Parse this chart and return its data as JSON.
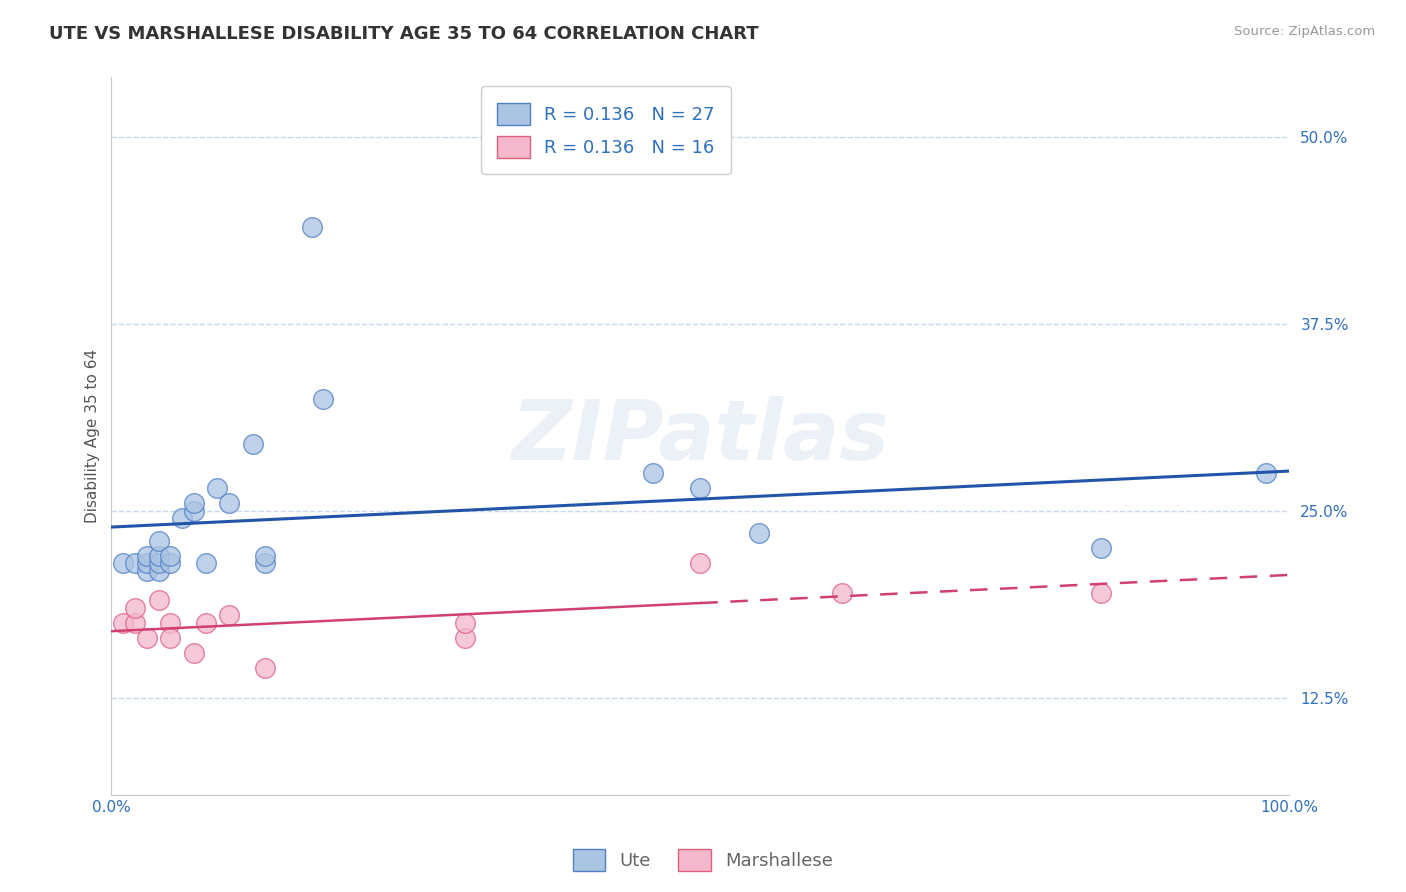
{
  "title": "UTE VS MARSHALLESE DISABILITY AGE 35 TO 64 CORRELATION CHART",
  "source": "Source: ZipAtlas.com",
  "ylabel": "Disability Age 35 to 64",
  "xlim": [
    0,
    1.0
  ],
  "ylim": [
    0.06,
    0.54
  ],
  "yticks": [
    0.125,
    0.25,
    0.375,
    0.5
  ],
  "yticklabels": [
    "12.5%",
    "25.0%",
    "37.5%",
    "50.0%"
  ],
  "ute_R": 0.136,
  "ute_N": 27,
  "marshallese_R": 0.136,
  "marshallese_N": 16,
  "ute_color": "#aac4e2",
  "ute_edge_color": "#5080c8",
  "ute_line_color": "#2255aa",
  "marshallese_color": "#f4b8cc",
  "marshallese_edge_color": "#e06080",
  "marshallese_line_color": "#d04070",
  "background_color": "#ffffff",
  "grid_color": "#c8d8ec",
  "ute_x": [
    0.01,
    0.02,
    0.03,
    0.03,
    0.03,
    0.04,
    0.04,
    0.04,
    0.04,
    0.05,
    0.05,
    0.06,
    0.07,
    0.07,
    0.08,
    0.09,
    0.1,
    0.12,
    0.13,
    0.13,
    0.17,
    0.18,
    0.46,
    0.5,
    0.55,
    0.84,
    0.98
  ],
  "ute_y": [
    0.215,
    0.215,
    0.21,
    0.215,
    0.22,
    0.21,
    0.215,
    0.22,
    0.23,
    0.215,
    0.22,
    0.245,
    0.25,
    0.255,
    0.215,
    0.265,
    0.255,
    0.295,
    0.215,
    0.22,
    0.44,
    0.325,
    0.275,
    0.265,
    0.235,
    0.225,
    0.275
  ],
  "marshallese_x": [
    0.01,
    0.02,
    0.02,
    0.03,
    0.04,
    0.05,
    0.05,
    0.07,
    0.08,
    0.1,
    0.13,
    0.3,
    0.3,
    0.5,
    0.62,
    0.84
  ],
  "marshallese_y": [
    0.175,
    0.175,
    0.185,
    0.165,
    0.19,
    0.175,
    0.165,
    0.155,
    0.175,
    0.18,
    0.145,
    0.165,
    0.175,
    0.215,
    0.195,
    0.195
  ],
  "marsh_solid_xend": 0.5,
  "legend_labels": [
    "Ute",
    "Marshallese"
  ],
  "title_fontsize": 13,
  "axis_label_fontsize": 11,
  "tick_fontsize": 11,
  "legend_fontsize": 13
}
